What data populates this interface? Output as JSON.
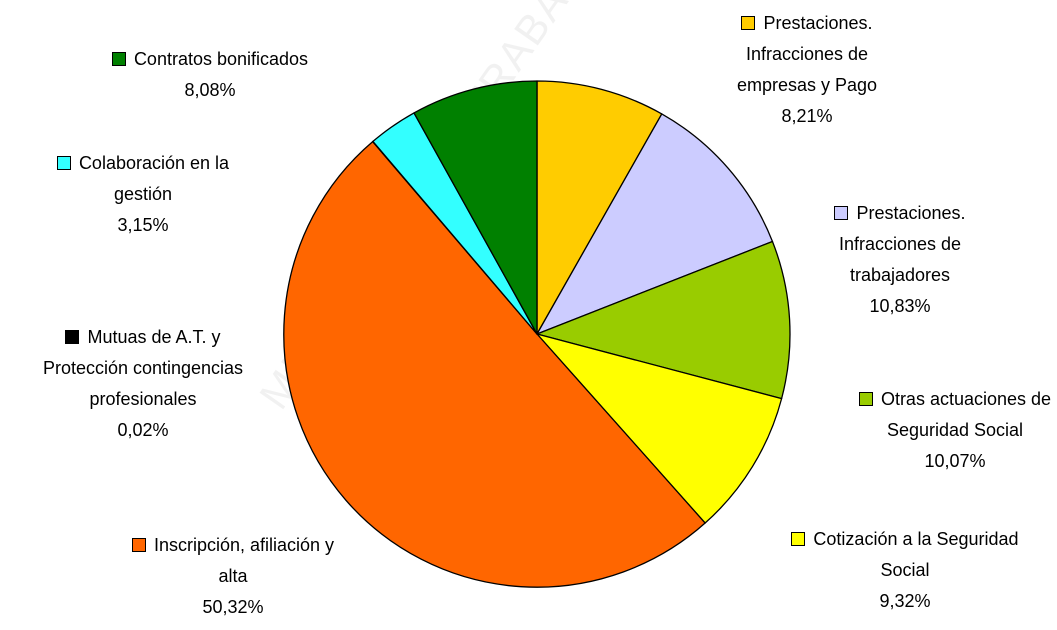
{
  "watermark": "MINISTERIO DE TRABAJO",
  "chart_data": {
    "type": "pie",
    "title": "",
    "slices": [
      {
        "lines": [
          "Prestaciones.",
          "Infracciones de",
          "empresas y  Pago"
        ],
        "value": 8.21,
        "value_label": "8,21%",
        "color": "#FFCC00"
      },
      {
        "lines": [
          "Prestaciones.",
          "Infracciones de",
          "trabajadores"
        ],
        "value": 10.83,
        "value_label": "10,83%",
        "color": "#CCCCFF"
      },
      {
        "lines": [
          "Otras actuaciones de",
          "Seguridad Social"
        ],
        "value": 10.07,
        "value_label": "10,07%",
        "color": "#99CC00"
      },
      {
        "lines": [
          "Cotización a la Seguridad",
          "Social"
        ],
        "value": 9.32,
        "value_label": "9,32%",
        "color": "#FFFF00"
      },
      {
        "lines": [
          "Inscripción, afiliación y",
          "alta"
        ],
        "value": 50.32,
        "value_label": "50,32%",
        "color": "#FF6600"
      },
      {
        "lines": [
          "Mutuas de A.T. y",
          "Protección contingencias",
          "profesionales"
        ],
        "value": 0.02,
        "value_label": "0,02%",
        "color": "#000000"
      },
      {
        "lines": [
          "Colaboración en la",
          "gestión"
        ],
        "value": 3.15,
        "value_label": "3,15%",
        "color": "#33FFFF"
      },
      {
        "lines": [
          "Contratos bonificados"
        ],
        "value": 8.08,
        "value_label": "8,08%",
        "color": "#008000"
      }
    ]
  }
}
